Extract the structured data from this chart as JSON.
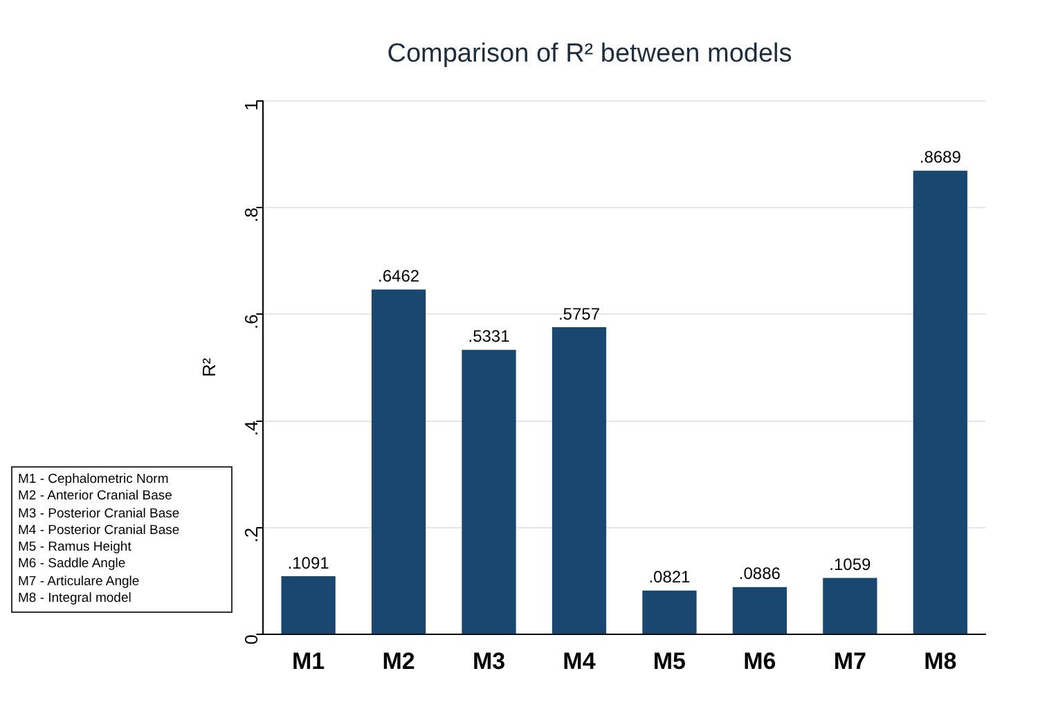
{
  "chart_data": {
    "type": "bar",
    "title": "Comparison of R² between models",
    "ylabel": "R²",
    "categories": [
      "M1",
      "M2",
      "M3",
      "M4",
      "M5",
      "M6",
      "M7",
      "M8"
    ],
    "values": [
      0.1091,
      0.6462,
      0.5331,
      0.5757,
      0.0821,
      0.0886,
      0.1059,
      0.8689
    ],
    "value_labels": [
      ".1091",
      ".6462",
      ".5331",
      ".5757",
      ".0821",
      ".0886",
      ".1059",
      ".8689"
    ],
    "color": "#1a476f",
    "ylim": [
      0,
      1
    ],
    "yticks": [
      {
        "value": 0,
        "label": "0"
      },
      {
        "value": 0.2,
        "label": ".2"
      },
      {
        "value": 0.4,
        "label": ".4"
      },
      {
        "value": 0.6,
        "label": ".6"
      },
      {
        "value": 0.8,
        "label": ".8"
      },
      {
        "value": 1,
        "label": "1"
      }
    ],
    "grid": "y",
    "annotations": [
      "M1 - Cephalometric Norm",
      "M2 - Anterior Cranial Base",
      "M3 - Posterior Cranial Base",
      "M4 - Posterior Cranial Base",
      "M5 - Ramus Height",
      "M6 - Saddle Angle",
      "M7 - Articulare Angle",
      "M8 - Integral model"
    ]
  }
}
